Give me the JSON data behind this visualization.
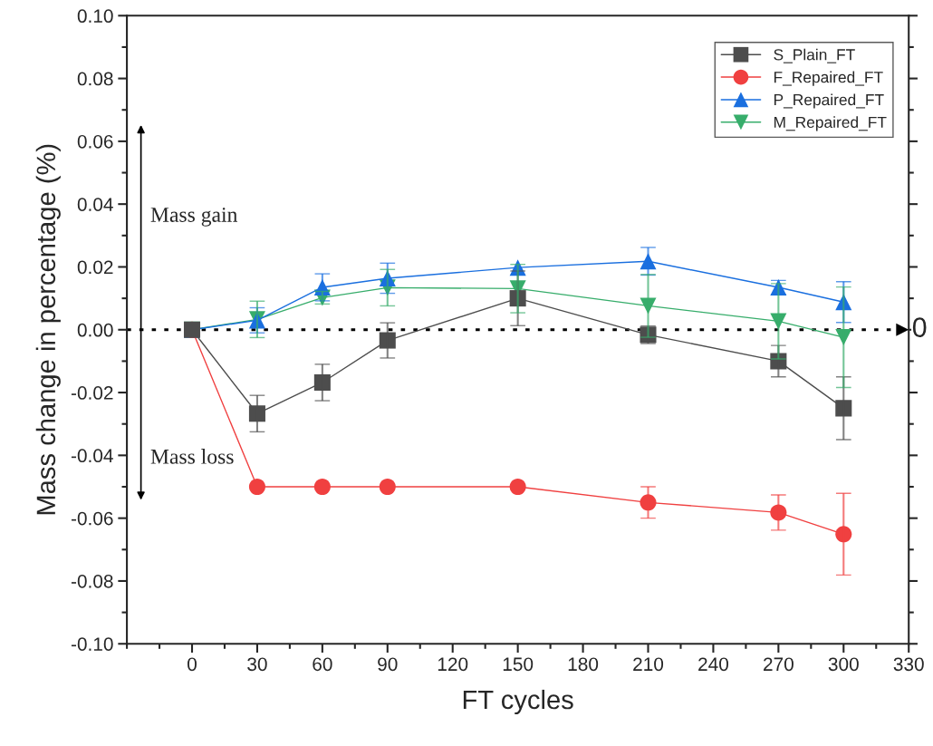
{
  "chart_data": {
    "type": "line",
    "xlabel": "FT cycles",
    "ylabel": "Mass change in percentage (%)",
    "x": [
      0,
      30,
      60,
      90,
      150,
      210,
      270,
      300
    ],
    "series": [
      {
        "name": "S_Plain_FT",
        "color": "#4d4d4d",
        "marker": "square",
        "values": [
          0,
          -0.0267,
          -0.0168,
          -0.0034,
          0.01,
          -0.0016,
          -0.01,
          -0.025
        ],
        "errors": [
          null,
          0.0058,
          0.0058,
          0.0056,
          0.0087,
          0.0028,
          0.005,
          0.01
        ]
      },
      {
        "name": "F_Repaired_FT",
        "color": "#f04040",
        "marker": "circle",
        "values": [
          0,
          -0.05,
          -0.05,
          -0.05,
          -0.05,
          -0.055,
          -0.0582,
          -0.0651
        ],
        "errors": [
          null,
          null,
          null,
          null,
          null,
          0.005,
          0.0056,
          0.013
        ]
      },
      {
        "name": "P_Repaired_FT",
        "color": "#1a6fdf",
        "marker": "triangle",
        "values": [
          0,
          0.003,
          0.0135,
          0.0164,
          0.0198,
          0.0218,
          0.0135,
          0.0088
        ],
        "errors": [
          null,
          0.004,
          0.0043,
          0.0048,
          null,
          0.0044,
          0.0022,
          0.0065
        ]
      },
      {
        "name": "M_Repaired_FT",
        "color": "#37ad6b",
        "marker": "triangle_down",
        "values": [
          0,
          0.0033,
          0.0102,
          0.0134,
          0.0131,
          0.0076,
          0.0027,
          -0.0024
        ],
        "errors": [
          null,
          0.0058,
          0.002,
          0.0058,
          0.0077,
          0.01,
          0.012,
          0.016
        ]
      }
    ],
    "xlim": [
      -30,
      330
    ],
    "xticks": [
      0,
      30,
      60,
      90,
      120,
      150,
      180,
      210,
      240,
      270,
      300,
      330
    ],
    "ylim": [
      -0.1,
      0.1
    ],
    "yticks": [
      {
        "value": -0.1,
        "label": "-0.10"
      },
      {
        "value": -0.08,
        "label": "-0.08"
      },
      {
        "value": -0.06,
        "label": "-0.06"
      },
      {
        "value": -0.04,
        "label": "-0.04"
      },
      {
        "value": -0.02,
        "label": "-0.02"
      },
      {
        "value": 0,
        "label": "0.00"
      },
      {
        "value": 0.02,
        "label": "0.02"
      },
      {
        "value": 0.04,
        "label": "0.04"
      },
      {
        "value": 0.06,
        "label": "0.06"
      },
      {
        "value": 0.08,
        "label": "0.08"
      },
      {
        "value": 0.1,
        "label": "0.10"
      }
    ],
    "ref_lines": [
      {
        "axis": "y",
        "value": 0,
        "label": "0",
        "color": "#000000",
        "line_style": "dotted"
      }
    ],
    "annotations": [
      "Mass gain",
      "Mass loss"
    ],
    "legend": "top right",
    "grid": false
  }
}
